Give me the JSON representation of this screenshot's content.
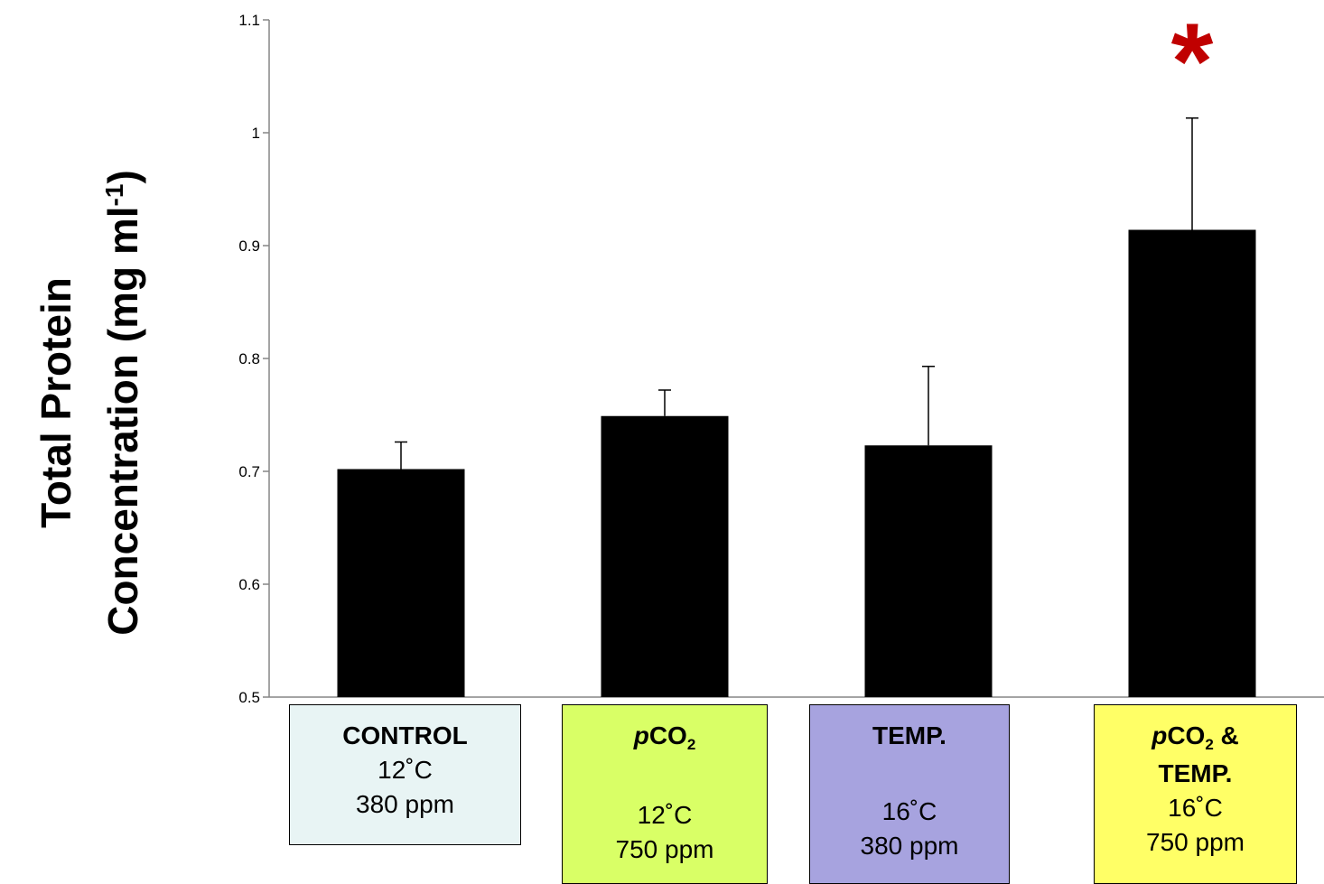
{
  "chart_data": {
    "type": "bar",
    "ylabel_line1": "Total Protein",
    "ylabel_line2": "Concentration (mg ml",
    "ylabel_sup": "-1",
    "ylabel_close": ")",
    "ylim": [
      0.5,
      1.1
    ],
    "yticks": [
      "0.5",
      "0.6",
      "0.7",
      "0.8",
      "0.9",
      "1",
      "1.1"
    ],
    "grid": false,
    "bar_color": "#000000",
    "categories": [
      "CONTROL",
      "pCO2",
      "TEMP.",
      "pCO2 & TEMP."
    ],
    "values": [
      0.702,
      0.749,
      0.723,
      0.914
    ],
    "errors": [
      0.024,
      0.023,
      0.07,
      0.099
    ],
    "significance": [
      null,
      null,
      null,
      "*"
    ],
    "significance_color": "#c00000"
  },
  "groups": [
    {
      "name_prefix": "",
      "name_main": "CONTROL",
      "name_sub": "",
      "name_suffix": "",
      "name2": "",
      "temp": "12˚C",
      "ppm": "380 ppm",
      "color": "#e8f4f4"
    },
    {
      "name_prefix": "p",
      "name_main": "CO",
      "name_sub": "2",
      "name_suffix": "",
      "name2": "",
      "temp": "12˚C",
      "ppm": "750 ppm",
      "color": "#d9ff66"
    },
    {
      "name_prefix": "",
      "name_main": "TEMP.",
      "name_sub": "",
      "name_suffix": "",
      "name2": "",
      "temp": "16˚C",
      "ppm": "380 ppm",
      "color": "#a7a3df"
    },
    {
      "name_prefix": "p",
      "name_main": "CO",
      "name_sub": "2",
      "name_suffix": " &",
      "name2": "TEMP.",
      "temp": "16˚C",
      "ppm": "750 ppm",
      "color": "#ffff66"
    }
  ]
}
